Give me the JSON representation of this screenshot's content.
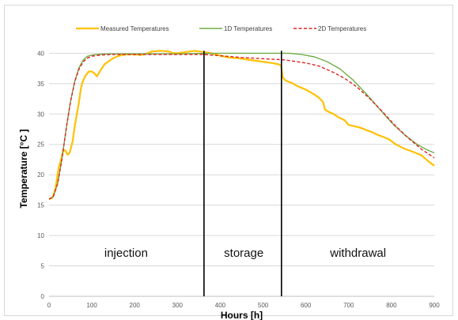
{
  "chart_data": {
    "type": "line",
    "title": "",
    "xlabel": "Hours [h]",
    "ylabel": "Temperature [°C ]",
    "xlim": [
      0,
      900
    ],
    "ylim": [
      0,
      42
    ],
    "xticks": [
      0,
      100,
      200,
      300,
      400,
      500,
      600,
      700,
      800,
      900
    ],
    "yticks": [
      0,
      5,
      10,
      15,
      20,
      25,
      30,
      35,
      40
    ],
    "grid": "horizontal",
    "legend_position": "top",
    "series": [
      {
        "name": "Measured Temperatures",
        "color": "#FFC000",
        "style": "solid",
        "points": [
          [
            0,
            16.0
          ],
          [
            8,
            16.2
          ],
          [
            14,
            17.5
          ],
          [
            18,
            19.0
          ],
          [
            22,
            21.0
          ],
          [
            28,
            22.5
          ],
          [
            33,
            24.0
          ],
          [
            38,
            24.0
          ],
          [
            43,
            23.3
          ],
          [
            48,
            23.6
          ],
          [
            55,
            25.5
          ],
          [
            60,
            28.0
          ],
          [
            65,
            30.0
          ],
          [
            70,
            32.0
          ],
          [
            74,
            34.0
          ],
          [
            78,
            35.2
          ],
          [
            85,
            36.3
          ],
          [
            93,
            37.0
          ],
          [
            100,
            37.0
          ],
          [
            106,
            36.7
          ],
          [
            112,
            36.2
          ],
          [
            117,
            36.8
          ],
          [
            123,
            37.5
          ],
          [
            130,
            38.2
          ],
          [
            140,
            38.7
          ],
          [
            150,
            39.2
          ],
          [
            160,
            39.5
          ],
          [
            170,
            39.7
          ],
          [
            180,
            39.8
          ],
          [
            200,
            39.8
          ],
          [
            215,
            39.7
          ],
          [
            230,
            40.0
          ],
          [
            240,
            40.3
          ],
          [
            260,
            40.4
          ],
          [
            280,
            40.3
          ],
          [
            290,
            40.0
          ],
          [
            300,
            40.0
          ],
          [
            320,
            40.2
          ],
          [
            340,
            40.4
          ],
          [
            360,
            40.2
          ],
          [
            380,
            40.0
          ],
          [
            400,
            39.6
          ],
          [
            420,
            39.3
          ],
          [
            440,
            39.2
          ],
          [
            460,
            39.0
          ],
          [
            480,
            38.8
          ],
          [
            500,
            38.6
          ],
          [
            520,
            38.4
          ],
          [
            535,
            38.2
          ],
          [
            542,
            38.0
          ],
          [
            546,
            36.0
          ],
          [
            553,
            35.5
          ],
          [
            560,
            35.3
          ],
          [
            570,
            35.0
          ],
          [
            580,
            34.6
          ],
          [
            590,
            34.3
          ],
          [
            600,
            34.0
          ],
          [
            610,
            33.6
          ],
          [
            620,
            33.2
          ],
          [
            630,
            32.7
          ],
          [
            640,
            32.0
          ],
          [
            645,
            30.7
          ],
          [
            655,
            30.3
          ],
          [
            665,
            30.0
          ],
          [
            675,
            29.5
          ],
          [
            690,
            29.0
          ],
          [
            700,
            28.2
          ],
          [
            712,
            28.0
          ],
          [
            725,
            27.8
          ],
          [
            740,
            27.4
          ],
          [
            755,
            27.0
          ],
          [
            770,
            26.5
          ],
          [
            782,
            26.2
          ],
          [
            795,
            25.8
          ],
          [
            810,
            25.0
          ],
          [
            830,
            24.3
          ],
          [
            850,
            23.8
          ],
          [
            870,
            23.2
          ],
          [
            890,
            22.0
          ],
          [
            900,
            21.5
          ]
        ]
      },
      {
        "name": "1D Temperatures",
        "color": "#70AD47",
        "style": "solid",
        "points": [
          [
            0,
            16.0
          ],
          [
            10,
            16.4
          ],
          [
            20,
            18.5
          ],
          [
            30,
            22.5
          ],
          [
            40,
            27.5
          ],
          [
            50,
            32.0
          ],
          [
            60,
            35.4
          ],
          [
            70,
            37.6
          ],
          [
            80,
            38.9
          ],
          [
            90,
            39.5
          ],
          [
            100,
            39.7
          ],
          [
            120,
            39.85
          ],
          [
            150,
            39.9
          ],
          [
            200,
            39.9
          ],
          [
            300,
            39.9
          ],
          [
            400,
            40.0
          ],
          [
            500,
            40.0
          ],
          [
            560,
            40.0
          ],
          [
            590,
            39.8
          ],
          [
            620,
            39.4
          ],
          [
            650,
            38.6
          ],
          [
            680,
            37.4
          ],
          [
            710,
            35.6
          ],
          [
            740,
            33.4
          ],
          [
            770,
            31.0
          ],
          [
            800,
            28.6
          ],
          [
            830,
            26.6
          ],
          [
            860,
            25.0
          ],
          [
            880,
            24.2
          ],
          [
            900,
            23.6
          ]
        ]
      },
      {
        "name": "2D Temperatures",
        "color": "#E02020",
        "style": "dashed",
        "points": [
          [
            0,
            16.0
          ],
          [
            10,
            16.4
          ],
          [
            20,
            18.5
          ],
          [
            30,
            22.5
          ],
          [
            40,
            27.5
          ],
          [
            50,
            32.0
          ],
          [
            60,
            35.3
          ],
          [
            70,
            37.4
          ],
          [
            80,
            38.6
          ],
          [
            90,
            39.2
          ],
          [
            100,
            39.5
          ],
          [
            120,
            39.7
          ],
          [
            150,
            39.8
          ],
          [
            200,
            39.8
          ],
          [
            300,
            39.8
          ],
          [
            360,
            39.8
          ],
          [
            400,
            39.6
          ],
          [
            450,
            39.3
          ],
          [
            500,
            39.1
          ],
          [
            550,
            38.9
          ],
          [
            600,
            38.4
          ],
          [
            630,
            37.9
          ],
          [
            660,
            37.0
          ],
          [
            690,
            35.9
          ],
          [
            720,
            34.4
          ],
          [
            750,
            32.5
          ],
          [
            780,
            30.3
          ],
          [
            810,
            28.0
          ],
          [
            840,
            26.0
          ],
          [
            870,
            24.2
          ],
          [
            900,
            22.8
          ]
        ]
      }
    ],
    "annotations": [
      {
        "type": "vline",
        "x": 362
      },
      {
        "type": "vline",
        "x": 543
      },
      {
        "type": "text",
        "label": "injection",
        "x": 180,
        "y": 6.5
      },
      {
        "type": "text",
        "label": "storage",
        "x": 455,
        "y": 6.5
      },
      {
        "type": "text",
        "label": "withdrawal",
        "x": 722,
        "y": 6.5
      }
    ]
  }
}
